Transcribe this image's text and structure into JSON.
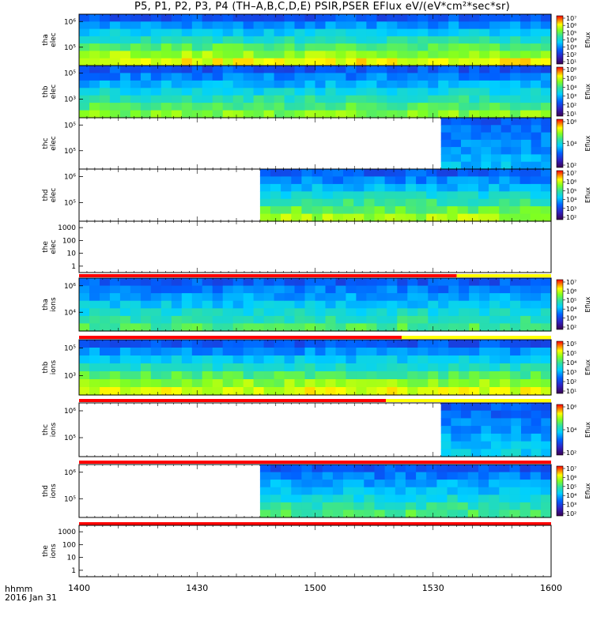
{
  "title": "P5, P1, P2, P3, P4 (TH–A,B,C,D,E) PSIR,PSER EFlux eV/(eV*cm²*sec*sr)",
  "xaxis": {
    "label_line1": "hhmm",
    "label_line2": "2016 Jan 31",
    "ticks": [
      "1400",
      "1430",
      "1500",
      "1530",
      "1600"
    ]
  },
  "colorbar_label": "Eflux",
  "chart_data": [
    {
      "type": "heatmap",
      "panel": "tha elec",
      "ylabel": [
        "tha",
        "elec"
      ],
      "yticks": [
        "10⁶",
        "10⁵"
      ],
      "colorbar": [
        "10⁷",
        "10⁶",
        "10⁵",
        "10⁴",
        "10³",
        "10²",
        "10¹"
      ],
      "x_range": [
        "1400",
        "1600"
      ],
      "data_start": "1400",
      "data_end": "1600",
      "fill_level": 0.7
    },
    {
      "type": "heatmap",
      "panel": "thb elec",
      "ylabel": [
        "thb",
        "elec"
      ],
      "yticks": [
        "10⁵",
        "10³"
      ],
      "colorbar": [
        "10⁶",
        "10⁵",
        "10⁴",
        "10³",
        "10²",
        "10¹"
      ],
      "x_range": [
        "1400",
        "1600"
      ],
      "data_start": "1400",
      "data_end": "1600",
      "fill_level": 0.55
    },
    {
      "type": "heatmap",
      "panel": "thc elec",
      "ylabel": [
        "thc",
        "elec"
      ],
      "yticks": [
        "10⁵",
        "10⁵"
      ],
      "colorbar": [
        "10⁶",
        "10⁴",
        "10²"
      ],
      "x_range": [
        "1400",
        "1600"
      ],
      "data_start": "1532",
      "data_end": "1600",
      "fill_level": 0.2
    },
    {
      "type": "heatmap",
      "panel": "thd elec",
      "ylabel": [
        "thd",
        "elec"
      ],
      "yticks": [
        "10⁶",
        "10⁵"
      ],
      "colorbar": [
        "10⁷",
        "10⁶",
        "10⁵",
        "10⁴",
        "10³",
        "10²"
      ],
      "x_range": [
        "1400",
        "1600"
      ],
      "data_start": "1446",
      "data_end": "1600",
      "fill_level": 0.6
    },
    {
      "type": "line",
      "panel": "the elec",
      "ylabel": [
        "the",
        "elec"
      ],
      "yticks": [
        "1000",
        "100",
        "10",
        "1"
      ],
      "x_range": [
        "1400",
        "1600"
      ],
      "status_bar": {
        "red_until": "1536",
        "rest": "yellow"
      }
    },
    {
      "type": "heatmap",
      "panel": "tha ions",
      "ylabel": [
        "tha",
        "ions"
      ],
      "yticks": [
        "10⁶",
        "10⁴"
      ],
      "colorbar": [
        "10⁷",
        "10⁶",
        "10⁵",
        "10⁴",
        "10³",
        "10²"
      ],
      "x_range": [
        "1400",
        "1600"
      ],
      "data_start": "1400",
      "data_end": "1600",
      "fill_level": 0.45,
      "status_bar": {
        "red_until": "1522",
        "rest": "yellow"
      }
    },
    {
      "type": "heatmap",
      "panel": "thb ions",
      "ylabel": [
        "thb",
        "ions"
      ],
      "yticks": [
        "10⁵",
        "10³"
      ],
      "colorbar": [
        "10⁵",
        "10⁵",
        "10⁴",
        "10³",
        "10²",
        "10¹"
      ],
      "x_range": [
        "1400",
        "1600"
      ],
      "data_start": "1400",
      "data_end": "1600",
      "fill_level": 0.68,
      "status_bar": {
        "red_until": "1518",
        "rest": "yellow"
      }
    },
    {
      "type": "heatmap",
      "panel": "thc ions",
      "ylabel": [
        "thc",
        "ions"
      ],
      "yticks": [
        "10⁶",
        "10⁵"
      ],
      "colorbar": [
        "10⁶",
        "10⁴",
        "10²"
      ],
      "x_range": [
        "1400",
        "1600"
      ],
      "data_start": "1532",
      "data_end": "1600",
      "fill_level": 0.25,
      "status_bar": {
        "red_until": "1600",
        "rest": "yellow"
      }
    },
    {
      "type": "heatmap",
      "panel": "thd ions",
      "ylabel": [
        "thd",
        "ions"
      ],
      "yticks": [
        "10⁶",
        "10⁵"
      ],
      "colorbar": [
        "10⁷",
        "10⁶",
        "10⁵",
        "10⁴",
        "10³",
        "10²"
      ],
      "x_range": [
        "1400",
        "1600"
      ],
      "data_start": "1446",
      "data_end": "1600",
      "fill_level": 0.45,
      "status_bar": {
        "red_until": "1600",
        "rest": "yellow"
      }
    },
    {
      "type": "line",
      "panel": "the ions",
      "ylabel": [
        "the",
        "ions"
      ],
      "yticks": [
        "1000",
        "100",
        "10",
        "1"
      ],
      "x_range": [
        "1400",
        "1600"
      ]
    }
  ]
}
